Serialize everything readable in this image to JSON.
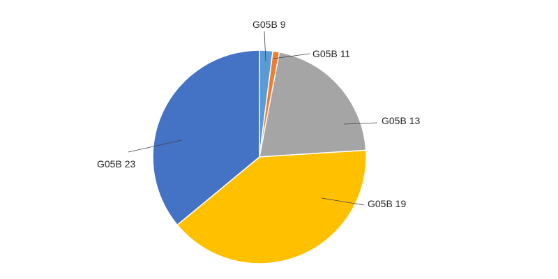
{
  "chart_data": {
    "type": "pie",
    "title": "",
    "start_angle_deg": 0,
    "direction": "clockwise",
    "legend": "none",
    "slices": [
      {
        "label": "G05B 9",
        "value": 2,
        "color": "#5B9BD5"
      },
      {
        "label": "G05B 11",
        "value": 1,
        "color": "#ED7D31"
      },
      {
        "label": "G05B 13",
        "value": 21,
        "color": "#A5A5A5"
      },
      {
        "label": "G05B 19",
        "value": 40,
        "color": "#FFC000"
      },
      {
        "label": "G05B 23",
        "value": 36,
        "color": "#4472C4"
      }
    ]
  }
}
